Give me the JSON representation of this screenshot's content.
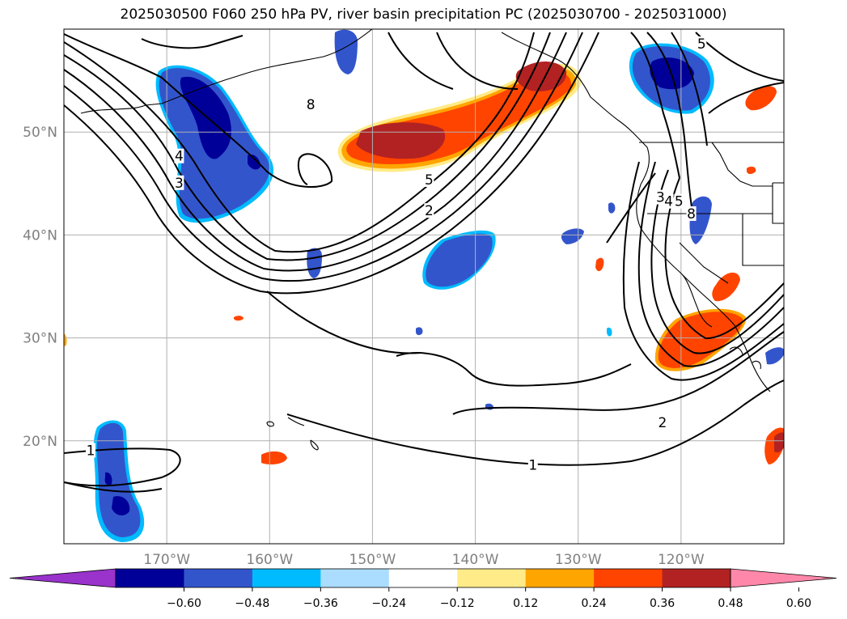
{
  "title": "2025030500 F060 250 hPa PV, river basin precipitation PC (2025030700 - 2025031000)",
  "map": {
    "projection": "PlateCarree",
    "lon_range": [
      -180,
      -110
    ],
    "lat_range": [
      10,
      60
    ],
    "lon_ticks": [
      {
        "value": -170,
        "label": "170°W"
      },
      {
        "value": -160,
        "label": "160°W"
      },
      {
        "value": -150,
        "label": "150°W"
      },
      {
        "value": -140,
        "label": "140°W"
      },
      {
        "value": -130,
        "label": "130°W"
      },
      {
        "value": -120,
        "label": "120°W"
      }
    ],
    "lat_ticks": [
      {
        "value": 20,
        "label": "20°N"
      },
      {
        "value": 30,
        "label": "30°N"
      },
      {
        "value": 40,
        "label": "40°N"
      },
      {
        "value": 50,
        "label": "50°N"
      }
    ],
    "gridlines": true,
    "contour_labels": [
      {
        "text": "8",
        "lon": -156,
        "lat": 52.6
      },
      {
        "text": "5",
        "lon": -144.5,
        "lat": 45.3
      },
      {
        "text": "2",
        "lon": -144.5,
        "lat": 42.3
      },
      {
        "text": "4",
        "lon": -168.8,
        "lat": 47.6
      },
      {
        "text": "3",
        "lon": -168.8,
        "lat": 45.0
      },
      {
        "text": "3",
        "lon": -122,
        "lat": 43.6
      },
      {
        "text": "4",
        "lon": -121.2,
        "lat": 43.2
      },
      {
        "text": "5",
        "lon": -120.2,
        "lat": 43.2
      },
      {
        "text": "8",
        "lon": -119,
        "lat": 42.0
      },
      {
        "text": "5",
        "lon": -118,
        "lat": 58.5
      },
      {
        "text": "2",
        "lon": -121.8,
        "lat": 21.7
      },
      {
        "text": "1",
        "lon": -134.4,
        "lat": 17.6
      },
      {
        "text": "1",
        "lon": -177.4,
        "lat": 19.0
      }
    ]
  },
  "colorbar": {
    "colors": [
      "#9933cc",
      "#000099",
      "#3355cc",
      "#00bbff",
      "#aaddff",
      "#ffffff",
      "#ffeb88",
      "#ffa500",
      "#ff4400",
      "#b22222",
      "#ff88aa"
    ],
    "ticks": [
      "−0.60",
      "−0.48",
      "−0.36",
      "−0.24",
      "−0.12",
      "0.12",
      "0.24",
      "0.36",
      "0.48",
      "0.60"
    ],
    "extend": "both"
  }
}
